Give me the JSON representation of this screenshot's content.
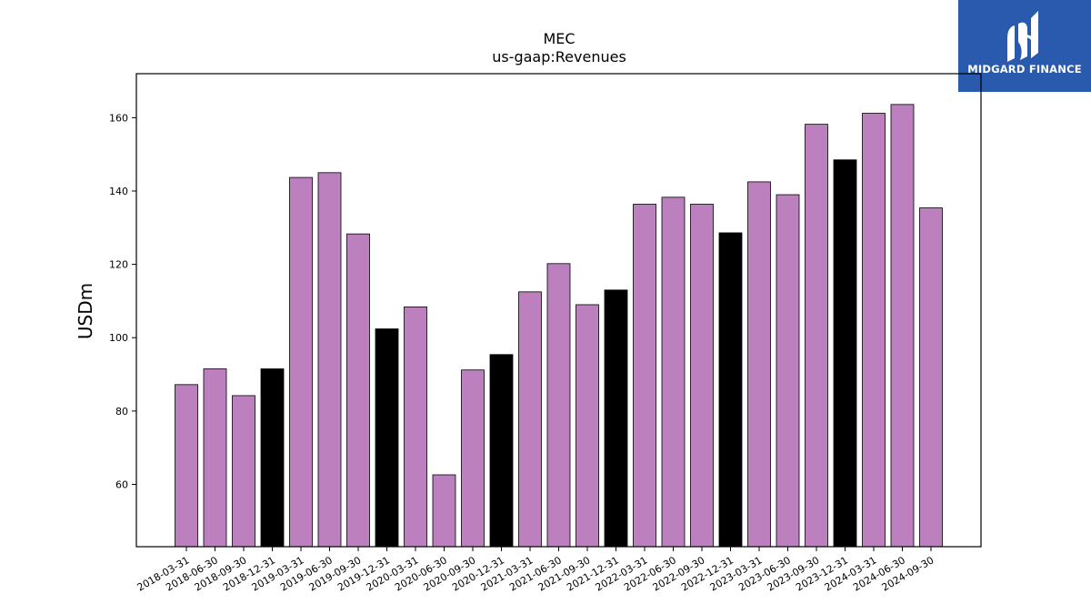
{
  "logo": {
    "text": "MIDGARD FINANCE",
    "background": "#2a5aad",
    "icon": "midgard-logo-icon"
  },
  "colors": {
    "quarter_bar": "#bb80bd",
    "year_end_bar": "#000000",
    "edge": "#000000"
  },
  "chart_data": {
    "type": "bar",
    "title": "MEC",
    "subtitle": "us-gaap:Revenues",
    "xlabel": "",
    "ylabel": "USDm",
    "ylim": [
      43,
      172
    ],
    "yticks": [
      60,
      80,
      100,
      120,
      140,
      160
    ],
    "grid": false,
    "categories": [
      "2018-03-31",
      "2018-06-30",
      "2018-09-30",
      "2018-12-31",
      "2019-03-31",
      "2019-06-30",
      "2019-09-30",
      "2019-12-31",
      "2020-03-31",
      "2020-06-30",
      "2020-09-30",
      "2020-12-31",
      "2021-03-31",
      "2021-06-30",
      "2021-09-30",
      "2021-12-31",
      "2022-03-31",
      "2022-06-30",
      "2022-09-30",
      "2022-12-31",
      "2023-03-31",
      "2023-06-30",
      "2023-09-30",
      "2023-12-31",
      "2024-03-31",
      "2024-06-30",
      "2024-09-30"
    ],
    "values": [
      87.2,
      91.5,
      84.2,
      91.5,
      143.7,
      145.0,
      128.3,
      102.4,
      108.4,
      62.6,
      91.2,
      95.4,
      112.5,
      120.2,
      109.0,
      113.0,
      136.4,
      138.3,
      136.4,
      128.6,
      142.5,
      139.0,
      158.2,
      148.5,
      161.2,
      163.6,
      135.4
    ],
    "highlight": [
      false,
      false,
      false,
      true,
      false,
      false,
      false,
      true,
      false,
      false,
      false,
      true,
      false,
      false,
      false,
      true,
      false,
      false,
      false,
      true,
      false,
      false,
      false,
      true,
      false,
      false,
      false
    ]
  }
}
